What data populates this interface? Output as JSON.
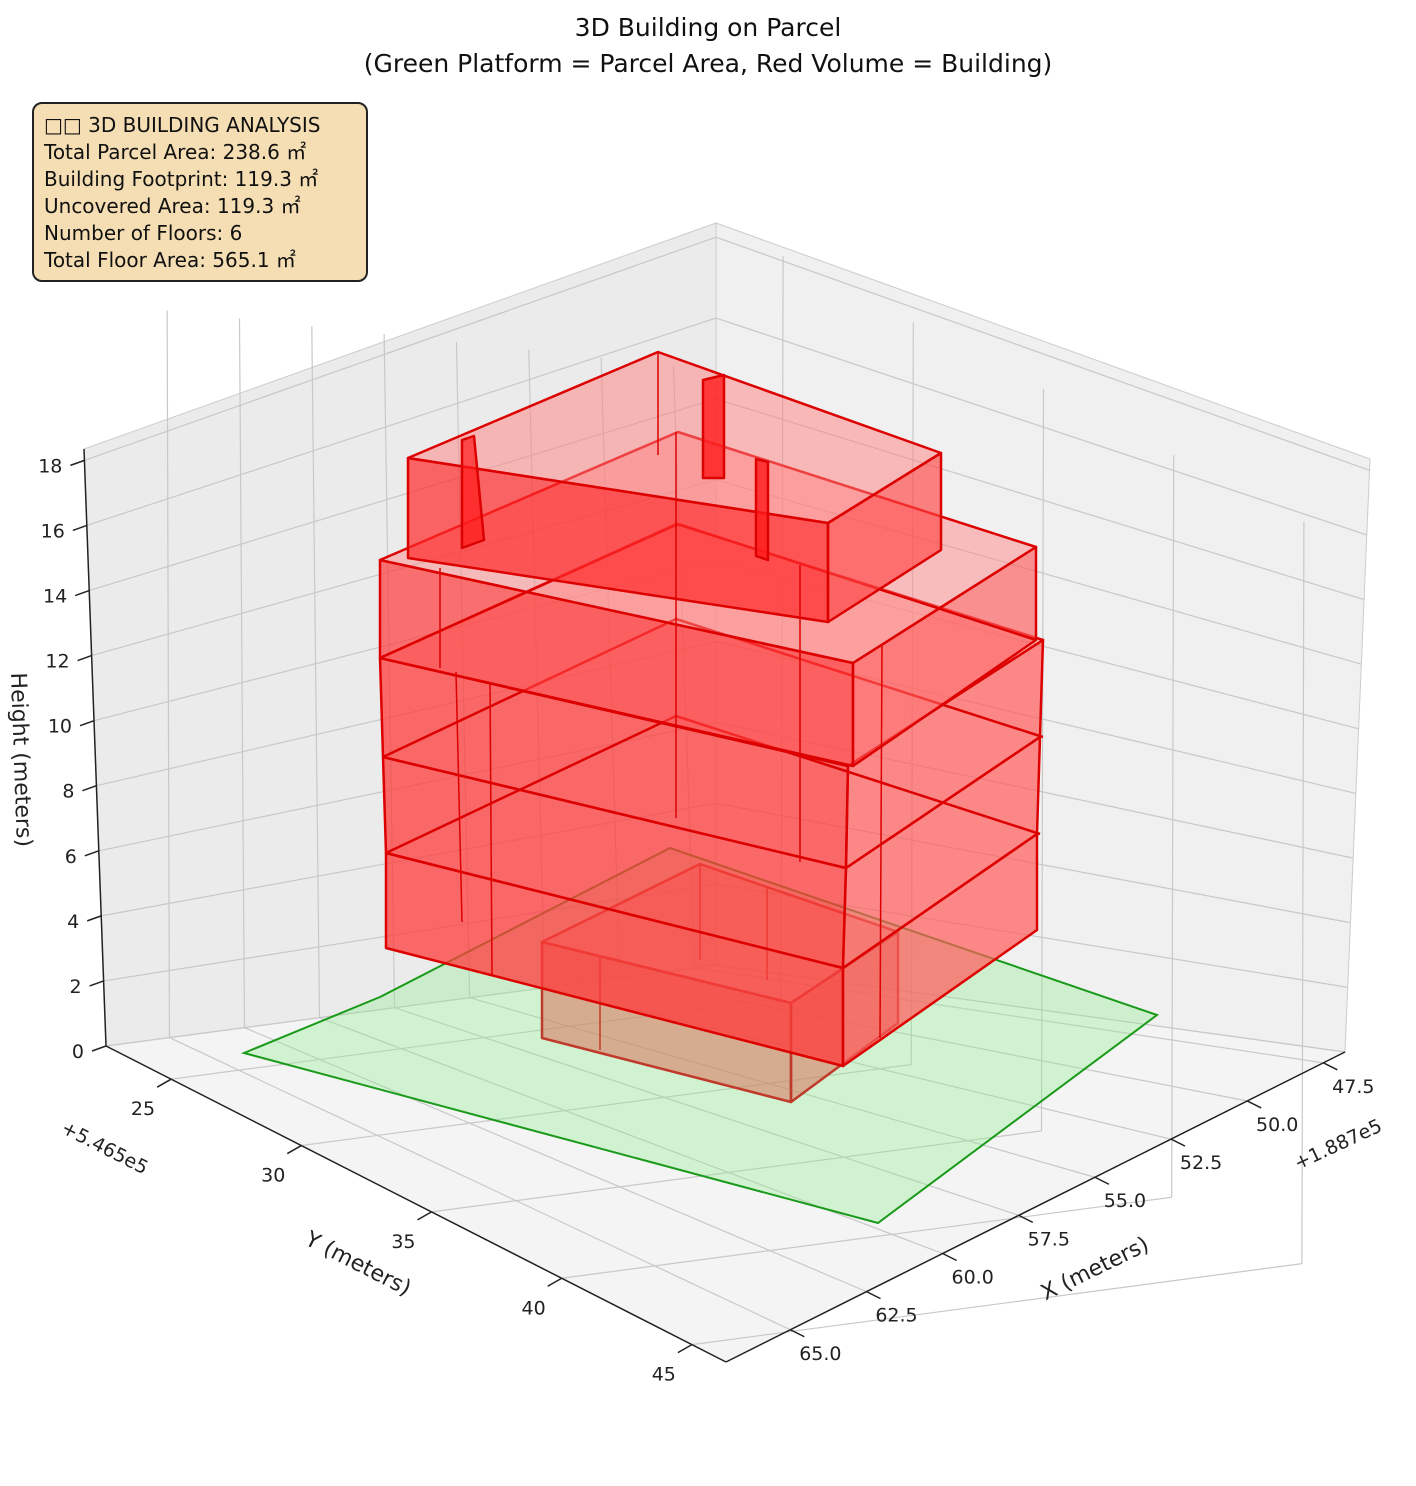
{
  "chart_data": {
    "type": "3d-polygons",
    "title": "3D Building on Parcel",
    "subtitle": "(Green Platform = Parcel Area, Red Volume = Building)",
    "xlabel": "X (meters)",
    "ylabel": "Y (meters)",
    "zlabel": "Height (meters)",
    "x_offset_label": "+1.887e5",
    "y_offset_label": "+5.465e5",
    "x_ticks": [
      "47.5",
      "50.0",
      "52.5",
      "55.0",
      "57.5",
      "60.0",
      "62.5",
      "65.0"
    ],
    "y_ticks": [
      "25",
      "30",
      "35",
      "40",
      "45"
    ],
    "z_ticks": [
      "0",
      "2",
      "4",
      "6",
      "8",
      "10",
      "12",
      "14",
      "16",
      "18"
    ],
    "zlim": [
      0,
      18
    ],
    "grid": true,
    "parcel_color": "#90ee90",
    "building_color": "#ff0000",
    "floors": 6
  },
  "info_box": {
    "heading": "□□ 3D BUILDING ANALYSIS",
    "lines": [
      "Total Parcel Area: 238.6 ㎡",
      "Building Footprint: 119.3 ㎡",
      "Uncovered Area: 119.3 ㎡",
      "Number of Floors: 6",
      "Total Floor Area: 565.1 ㎡"
    ]
  }
}
